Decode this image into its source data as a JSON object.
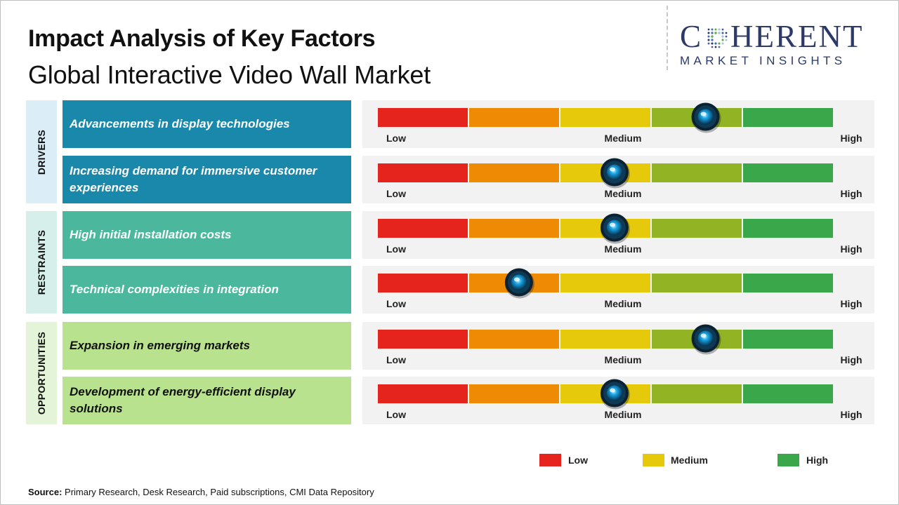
{
  "header": {
    "title": "Impact Analysis of Key Factors",
    "subtitle": "Global Interactive Video Wall Market"
  },
  "logo": {
    "main_before": "C",
    "main_after": "HERENT",
    "sub": "MARKET INSIGHTS"
  },
  "colors": {
    "low": "#e5251d",
    "low_mid": "#ef8a05",
    "medium": "#e6c90a",
    "mid_high": "#92b324",
    "high": "#3aa84a",
    "drivers_cat": "#dbeef7",
    "drivers_factor": "#1a88ab",
    "restraints_cat": "#d6efea",
    "restraints_factor": "#4bb89e",
    "opportunities_cat": "#e3f4d9",
    "opportunities_factor": "#b9e28e",
    "knob": "#1aa6e8"
  },
  "chart_data": {
    "type": "gauge",
    "scale_labels": [
      "Low",
      "Medium",
      "High"
    ],
    "scale_segments": 5,
    "categories": [
      {
        "name": "DRIVERS",
        "factors": [
          {
            "label": "Advancements in display technologies",
            "impact": 0.72
          },
          {
            "label": "Increasing demand for immersive customer experiences",
            "impact": 0.52
          }
        ]
      },
      {
        "name": "RESTRAINTS",
        "factors": [
          {
            "label": "High initial installation costs",
            "impact": 0.52
          },
          {
            "label": "Technical complexities in integration",
            "impact": 0.31
          }
        ]
      },
      {
        "name": "OPPORTUNITIES",
        "factors": [
          {
            "label": "Expansion in emerging markets",
            "impact": 0.72
          },
          {
            "label": "Development of energy-efficient display solutions",
            "impact": 0.52
          }
        ]
      }
    ],
    "legend": [
      {
        "label": "Low",
        "color": "#e5251d"
      },
      {
        "label": "Medium",
        "color": "#e6c90a"
      },
      {
        "label": "High",
        "color": "#3aa84a"
      }
    ]
  },
  "footer": {
    "source_label": "Source:",
    "source_text": " Primary Research, Desk Research, Paid subscriptions, CMI Data Repository"
  }
}
